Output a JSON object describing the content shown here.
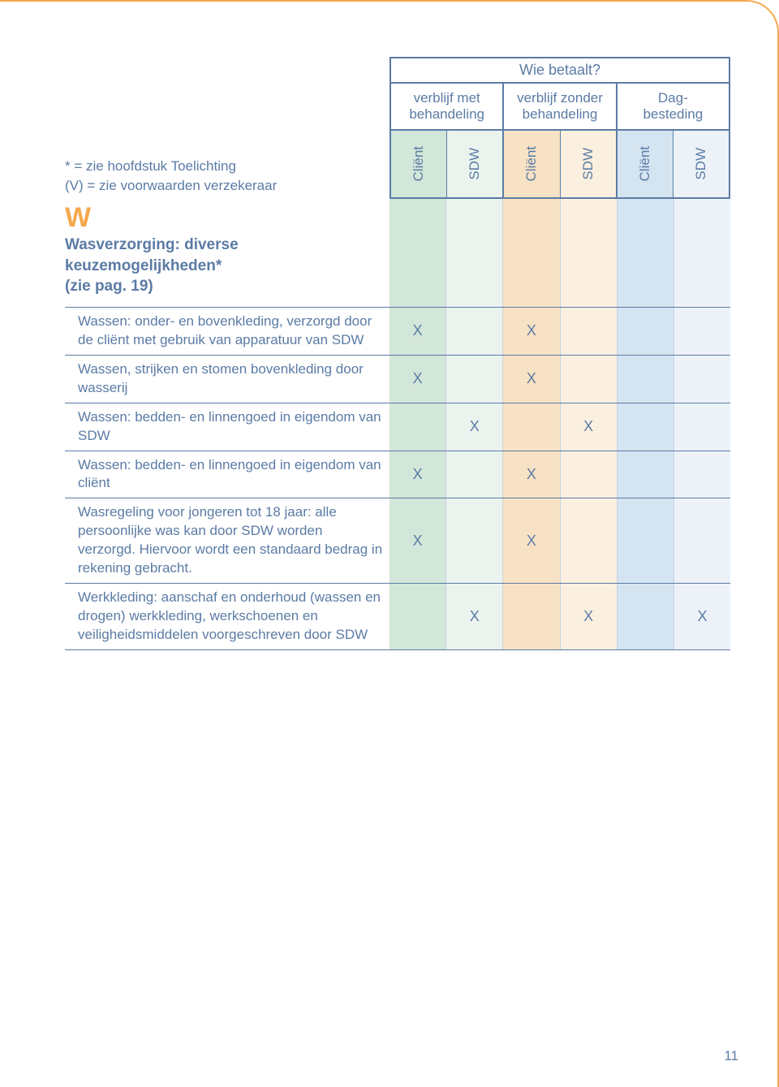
{
  "legend": {
    "line1": "* = zie hoofdstuk Toelichting",
    "line2": "(V) = zie voorwaarden verzekeraar"
  },
  "header": {
    "title": "Wie betaalt?",
    "groups": [
      {
        "label": "verblijf met behandeling",
        "sub": [
          "Cliënt",
          "SDW"
        ]
      },
      {
        "label": "verblijf zonder behandeling",
        "sub": [
          "Cliënt",
          "SDW"
        ]
      },
      {
        "label": "Dag-\nbesteding",
        "sub": [
          "Cliënt",
          "SDW"
        ]
      }
    ]
  },
  "column_colors": [
    "#d2e6d9",
    "#eaf3ee",
    "#f7e2c5",
    "#fbf0df",
    "#d5e4f1",
    "#ecf2f8"
  ],
  "accent_orange": "#f4a94d",
  "accent_blue": "#5b7ba5",
  "section": {
    "letter": "W",
    "title_lines": [
      "Wasverzorging: diverse",
      "keuzemogelijkheden*",
      "(zie pag. 19)"
    ]
  },
  "rows": [
    {
      "desc": "Wassen: onder- en bovenkleding, verzorgd door de cliënt met gebruik van apparatuur van SDW",
      "marks": [
        "X",
        "",
        "X",
        "",
        "",
        ""
      ]
    },
    {
      "desc": "Wassen, strijken en stomen bovenkleding door wasserij",
      "marks": [
        "X",
        "",
        "X",
        "",
        "",
        ""
      ]
    },
    {
      "desc": "Wassen: bedden- en linnengoed in eigendom van SDW",
      "marks": [
        "",
        "X",
        "",
        "X",
        "",
        ""
      ]
    },
    {
      "desc": "Wassen: bedden- en linnengoed in eigendom van cliënt",
      "marks": [
        "X",
        "",
        "X",
        "",
        "",
        ""
      ]
    },
    {
      "desc": "Wasregeling voor jongeren tot 18 jaar: alle persoonlijke was kan door SDW worden verzorgd. Hiervoor wordt een standaard bedrag in rekening gebracht.",
      "marks": [
        "X",
        "",
        "X",
        "",
        "",
        ""
      ]
    },
    {
      "desc": "Werkkleding: aanschaf en onderhoud (wassen en drogen) werkkleding, werkschoenen en veiligheidsmiddelen voorgeschreven door SDW",
      "marks": [
        "",
        "X",
        "",
        "X",
        "",
        "X"
      ]
    }
  ],
  "page_number": "11"
}
